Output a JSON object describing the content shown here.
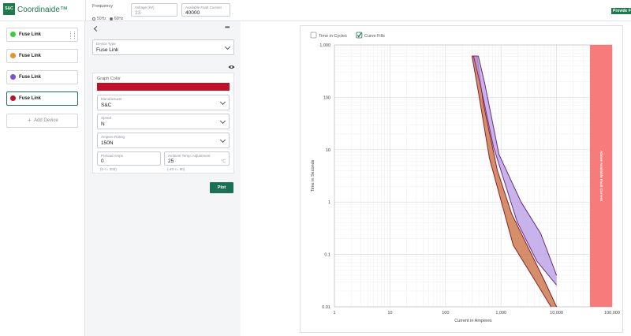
{
  "header": {
    "logo": "S&C",
    "app_name": "Coordinaide™",
    "frequency": {
      "label": "Frequency",
      "options": [
        {
          "label": "50Hz",
          "selected": false
        },
        {
          "label": "60Hz",
          "selected": true
        }
      ]
    },
    "voltage": {
      "label": "Voltage (kV)",
      "value": "23"
    },
    "fault_current": {
      "label": "Available Fault Current",
      "value": "40000"
    },
    "feedback_button": "Provide Feedback"
  },
  "devices": [
    {
      "label": "Fuse Link",
      "color": "#3ccc3c",
      "selected": false
    },
    {
      "label": "Fuse Link",
      "color": "#e8912d",
      "selected": false
    },
    {
      "label": "Fuse Link",
      "color": "#7b4fd6",
      "selected": false
    },
    {
      "label": "Fuse Link",
      "color": "#c0102a",
      "selected": true
    }
  ],
  "add_device": "Add Device",
  "form": {
    "device_type": {
      "label": "Device Type",
      "value": "Fuse Link"
    },
    "graph_color": {
      "label": "Graph Color",
      "color": "#c0102a"
    },
    "manufacturer": {
      "label": "Manufacturer",
      "value": "S&C"
    },
    "speed": {
      "label": "Speed",
      "value": "N"
    },
    "ampere_rating": {
      "label": "Ampere Rating",
      "value": "150N"
    },
    "preload_amps": {
      "label": "Preload Amps",
      "value": "0",
      "hint": "(0 <= 300)"
    },
    "ambient_temp": {
      "label": "Ambient Temp. Adjustment",
      "value": "25",
      "unit": "°C",
      "hint": "(-40 <= 90)"
    },
    "plot_button": "Plot"
  },
  "chart_data": {
    "type": "line",
    "checkboxes": [
      {
        "label": "Time in Cycles",
        "checked": false
      },
      {
        "label": "Curve Fills",
        "checked": true
      }
    ],
    "x_label": "Current in Amperes",
    "y_label": "Time in Seconds",
    "log_x": true,
    "log_y": true,
    "grid": true,
    "xlim": [
      1,
      100000
    ],
    "ylim": [
      0.01,
      1000
    ],
    "xticks": [
      1,
      10,
      100,
      {
        "value": 1000,
        "label": "1,000"
      },
      {
        "value": 10000,
        "label": "10,000"
      },
      {
        "value": 100000,
        "label": "100,000"
      }
    ],
    "yticks": [
      0.01,
      0.1,
      1,
      10,
      100,
      {
        "value": 1000,
        "label": "1,000"
      }
    ],
    "fault_region": {
      "label": "Above Available Fault Current",
      "x": [
        40000,
        100000
      ],
      "color": "#f77b7b"
    },
    "series": [
      {
        "color": "#8a1f2c",
        "fill": "#c86a3a",
        "min_melt": {
          "x": [
            300,
            390,
            620,
            1660,
            3750,
            7960
          ],
          "y": [
            615,
            129,
            6.8,
            0.15,
            0.037,
            0.01
          ]
        },
        "total_clearing": {
          "x": [
            370,
            480,
            860,
            1550,
            6100,
            10000
          ],
          "y": [
            615,
            77,
            4,
            0.6,
            0.031,
            0.01
          ]
        }
      },
      {
        "color": "#6b2d7a",
        "fill": "#b79ae6",
        "min_melt": {
          "x": [
            320,
            420,
            730,
            1950,
            4400,
            10000
          ],
          "y": [
            615,
            183,
            11.4,
            0.42,
            0.075,
            0.026
          ]
        },
        "total_clearing": {
          "x": [
            390,
            510,
            920,
            2300,
            5200,
            10000
          ],
          "y": [
            615,
            183,
            8.1,
            1,
            0.25,
            0.04
          ]
        }
      }
    ]
  }
}
